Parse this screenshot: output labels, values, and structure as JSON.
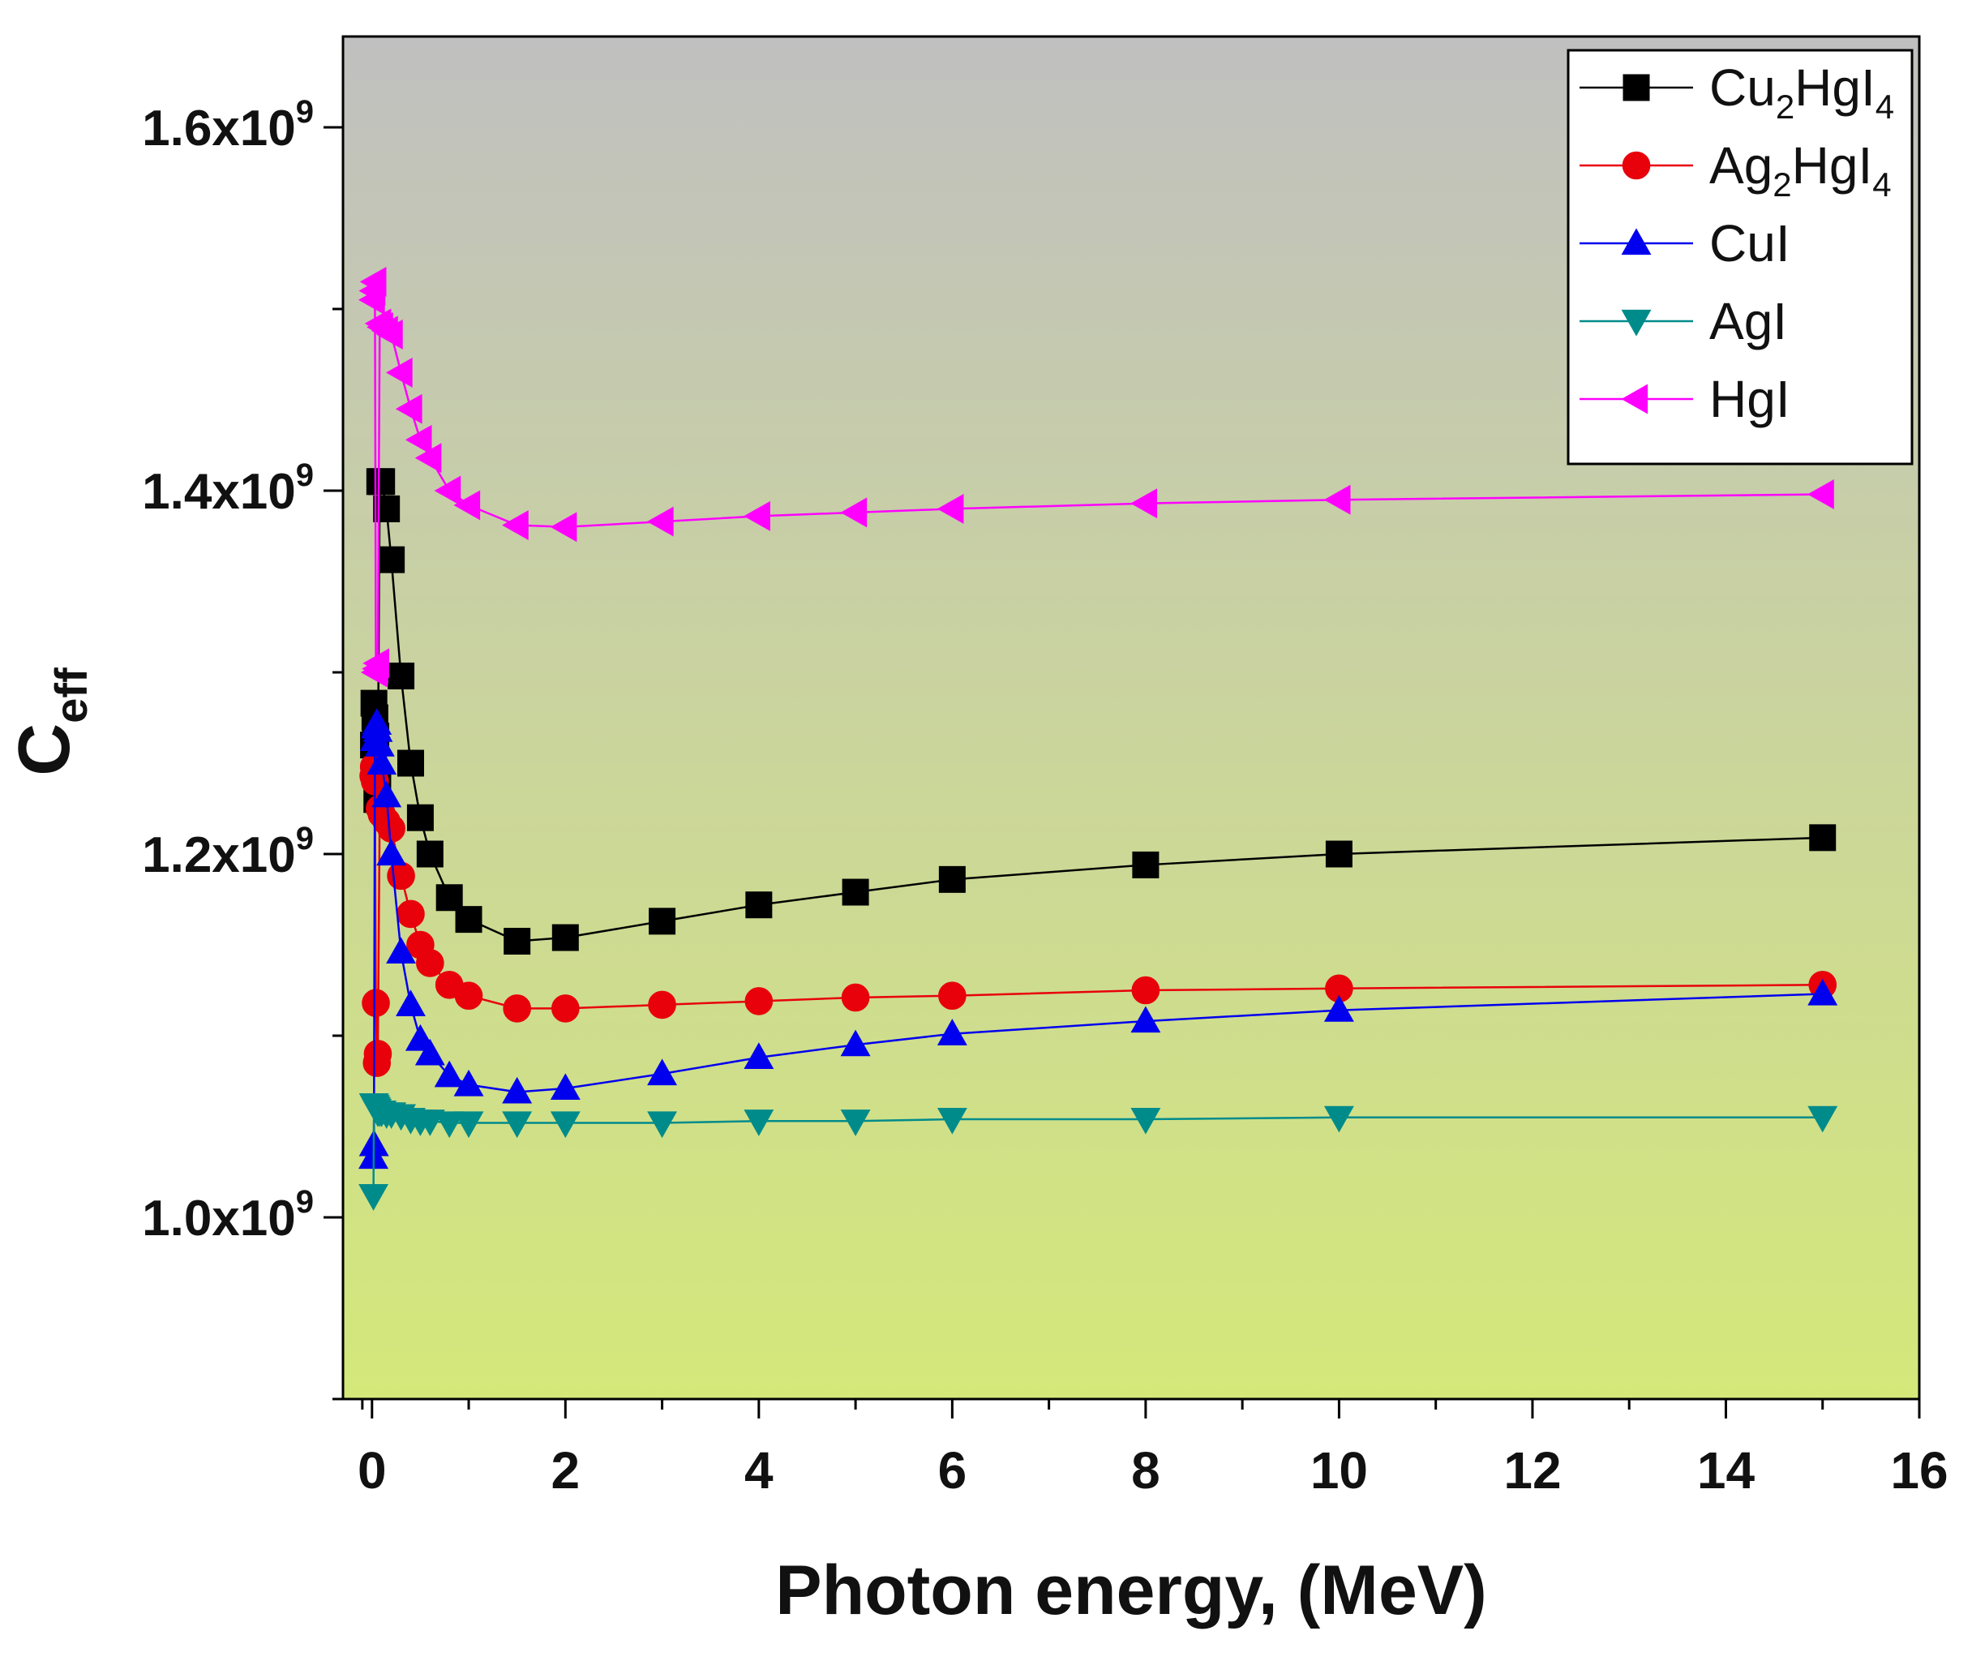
{
  "chart_data": {
    "type": "line",
    "xlabel": "Photon energy, (MeV)",
    "ylabel": {
      "base": "C",
      "sub": "eff"
    },
    "xlim": [
      -0.3,
      16
    ],
    "ylim": [
      900000000.0,
      1650000000.0
    ],
    "xticks": [
      {
        "value": 0,
        "label": "0"
      },
      {
        "value": 2,
        "label": "2"
      },
      {
        "value": 4,
        "label": "4"
      },
      {
        "value": 6,
        "label": "6"
      },
      {
        "value": 8,
        "label": "8"
      },
      {
        "value": 10,
        "label": "10"
      },
      {
        "value": 12,
        "label": "12"
      },
      {
        "value": 14,
        "label": "14"
      },
      {
        "value": 16,
        "label": "16"
      }
    ],
    "yticks": [
      {
        "value": 1000000000.0,
        "label": "1.0x10",
        "exp": "9"
      },
      {
        "value": 1200000000.0,
        "label": "1.2x10",
        "exp": "9"
      },
      {
        "value": 1400000000.0,
        "label": "1.4x10",
        "exp": "9"
      },
      {
        "value": 1600000000.0,
        "label": "1.6x10",
        "exp": "9"
      }
    ],
    "legend_position": "top-right",
    "background_gradient": [
      "#c0c0c0",
      "#d4e87a"
    ],
    "x": [
      0.015,
      0.02,
      0.03,
      0.04,
      0.05,
      0.06,
      0.08,
      0.1,
      0.15,
      0.2,
      0.3,
      0.4,
      0.5,
      0.6,
      0.8,
      1,
      1.5,
      2,
      3,
      4,
      5,
      6,
      8,
      10,
      15
    ],
    "series": [
      {
        "name": "Cu2HgI4",
        "legend_parts": [
          {
            "t": "Cu",
            "sub": false
          },
          {
            "t": "2",
            "sub": true
          },
          {
            "t": "HgI",
            "sub": false
          },
          {
            "t": "4",
            "sub": true
          }
        ],
        "color": "#000000",
        "marker": "square",
        "values": [
          1260000000.0,
          1283000000.0,
          1275000000.0,
          1265000000.0,
          1230000000.0,
          1240000000.0,
          1405000000.0,
          1405000000.0,
          1390000000.0,
          1362000000.0,
          1298000000.0,
          1250000000.0,
          1220000000.0,
          1200000000.0,
          1176000000.0,
          1164000000.0,
          1152000000.0,
          1154000000.0,
          1163000000.0,
          1172000000.0,
          1179000000.0,
          1186000000.0,
          1194000000.0,
          1200000000.0,
          1209000000.0
        ]
      },
      {
        "name": "Ag2HgI4",
        "legend_parts": [
          {
            "t": "Ag",
            "sub": false
          },
          {
            "t": "2",
            "sub": true
          },
          {
            "t": "HgI",
            "sub": false
          },
          {
            "t": "4",
            "sub": true
          }
        ],
        "color": "#e8000b",
        "marker": "circle",
        "values": [
          1243000000.0,
          1248000000.0,
          1240000000.0,
          1118000000.0,
          1085000000.0,
          1090000000.0,
          1225000000.0,
          1222000000.0,
          1218000000.0,
          1214000000.0,
          1188000000.0,
          1167000000.0,
          1150000000.0,
          1140000000.0,
          1128000000.0,
          1122000000.0,
          1115000000.0,
          1115000000.0,
          1117000000.0,
          1119000000.0,
          1121000000.0,
          1122000000.0,
          1125000000.0,
          1126000000.0,
          1128000000.0
        ]
      },
      {
        "name": "CuI",
        "legend_parts": [
          {
            "t": "CuI",
            "sub": false
          }
        ],
        "color": "#0000ee",
        "marker": "triangle-up",
        "values": [
          1033000000.0,
          1040000000.0,
          1263000000.0,
          1270000000.0,
          1272000000.0,
          1268000000.0,
          1260000000.0,
          1250000000.0,
          1232000000.0,
          1200000000.0,
          1146000000.0,
          1117000000.0,
          1098000000.0,
          1090000000.0,
          1078000000.0,
          1073000000.0,
          1069000000.0,
          1071000000.0,
          1079000000.0,
          1088000000.0,
          1095000000.0,
          1101000000.0,
          1108000000.0,
          1114000000.0,
          1123000000.0
        ]
      },
      {
        "name": "AgI",
        "legend_parts": [
          {
            "t": "AgI",
            "sub": false
          }
        ],
        "color": "#008b8b",
        "marker": "triangle-down",
        "values": [
          1012000000.0,
          1062000000.0,
          1061000000.0,
          1060000000.0,
          1059000000.0,
          1058000000.0,
          1058000000.0,
          1058000000.0,
          1057000000.0,
          1057000000.0,
          1056000000.0,
          1054000000.0,
          1053000000.0,
          1053000000.0,
          1052000000.0,
          1052000000.0,
          1052000000.0,
          1052000000.0,
          1052000000.0,
          1053000000.0,
          1053000000.0,
          1054000000.0,
          1054000000.0,
          1055000000.0,
          1055000000.0
        ]
      },
      {
        "name": "HgI",
        "legend_parts": [
          {
            "t": "HgI",
            "sub": false
          }
        ],
        "color": "#ff00ff",
        "marker": "triangle-left",
        "values": [
          1505000000.0,
          1510000000.0,
          1515000000.0,
          1300000000.0,
          1302000000.0,
          1305000000.0,
          1492000000.0,
          1490000000.0,
          1488000000.0,
          1486000000.0,
          1465000000.0,
          1445000000.0,
          1428000000.0,
          1418000000.0,
          1400000000.0,
          1392000000.0,
          1381000000.0,
          1380000000.0,
          1383000000.0,
          1386000000.0,
          1388000000.0,
          1390000000.0,
          1393000000.0,
          1395000000.0,
          1398000000.0
        ]
      }
    ]
  }
}
